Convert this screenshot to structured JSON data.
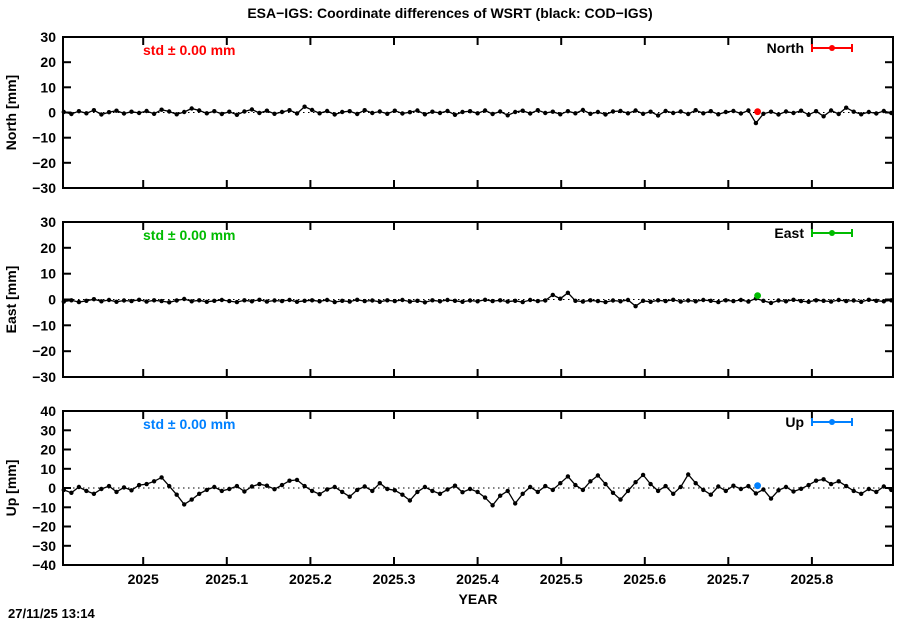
{
  "title": "ESA−IGS: Coordinate differences of WSRT (black: COD−IGS)",
  "timestamp": "27/11/25 13:14",
  "colors": {
    "north": "#ff0000",
    "east": "#00bb00",
    "up": "#0080ff",
    "data": "#000000"
  },
  "chart_data": {
    "type": "line",
    "title": "ESA−IGS: Coordinate differences of WSRT (black: COD−IGS)",
    "xlabel": "YEAR",
    "xlim": [
      2024.904,
      2025.897
    ],
    "x_ticks": [
      2025.0,
      2025.1,
      2025.2,
      2025.3,
      2025.4,
      2025.5,
      2025.6,
      2025.7,
      2025.8
    ],
    "x_tick_labels": [
      "2025",
      "2025.1",
      "2025.2",
      "2025.3",
      "2025.4",
      "2025.5",
      "2025.6",
      "2025.7",
      "2025.8"
    ],
    "x_start": 2024.905,
    "x_step": 0.009,
    "grid": false,
    "legend_position": "top-right-inside",
    "panels": [
      {
        "name": "North",
        "ylabel": "North [mm]",
        "ylim": [
          -30,
          30
        ],
        "yticks": [
          30,
          20,
          10,
          0,
          -10,
          -20,
          -30
        ],
        "ytick_labels": [
          "30",
          "20",
          "10",
          "0",
          "−10",
          "−20",
          "−30"
        ],
        "std_label": "std ± 0.00 mm",
        "legend": "North",
        "color": "#ff0000",
        "highlight": {
          "x": 2025.735,
          "y": 0.3
        },
        "values": [
          0.2,
          -0.6,
          0.5,
          -0.3,
          0.9,
          -0.8,
          0.1,
          0.7,
          -0.4,
          0.3,
          -0.2,
          0.6,
          -0.5,
          1.1,
          0.4,
          -0.7,
          0.2,
          1.6,
          0.8,
          -0.3,
          0.5,
          -0.6,
          0.3,
          -0.9,
          0.4,
          1.2,
          -0.2,
          0.7,
          -0.5,
          0.2,
          0.9,
          -0.4,
          2.3,
          1.0,
          -0.3,
          0.6,
          -0.8,
          0.2,
          0.5,
          -0.6,
          0.9,
          -0.2,
          0.4,
          -0.5,
          0.7,
          -0.4,
          0.1,
          0.8,
          -0.7,
          0.3,
          -0.2,
          0.6,
          -0.9,
          0.2,
          0.5,
          -0.3,
          0.8,
          -0.6,
          0.4,
          -1.1,
          0.2,
          0.7,
          -0.4,
          0.9,
          -0.2,
          0.3,
          -0.7,
          0.5,
          -0.3,
          1.0,
          -0.5,
          0.2,
          -0.8,
          0.4,
          0.6,
          -0.3,
          0.8,
          -0.5,
          0.3,
          -1.2,
          0.6,
          -0.2,
          0.4,
          -0.6,
          0.9,
          -0.3,
          0.5,
          -0.7,
          0.2,
          0.6,
          -0.4,
          0.8,
          -4.2,
          -0.5,
          0.3,
          -0.8,
          0.4,
          -0.2,
          0.7,
          -0.9,
          0.5,
          -1.5,
          0.8,
          -0.6,
          1.9,
          0.3,
          -0.7,
          0.2,
          -0.4,
          0.6,
          -0.2
        ]
      },
      {
        "name": "East",
        "ylabel": "East [mm]",
        "ylim": [
          -30,
          30
        ],
        "yticks": [
          30,
          20,
          10,
          0,
          -10,
          -20,
          -30
        ],
        "ytick_labels": [
          "30",
          "20",
          "10",
          "0",
          "−10",
          "−20",
          "−30"
        ],
        "std_label": "std ± 0.00 mm",
        "legend": "East",
        "color": "#00bb00",
        "highlight": {
          "x": 2025.735,
          "y": 1.5
        },
        "values": [
          -0.8,
          -0.3,
          -1.0,
          -0.5,
          0.1,
          -0.7,
          -0.2,
          -0.9,
          -0.4,
          -0.6,
          -0.1,
          -0.8,
          -0.3,
          -0.6,
          -1.1,
          -0.4,
          0.2,
          -0.7,
          -0.3,
          -0.9,
          -0.5,
          -0.2,
          -0.6,
          -1.0,
          -0.3,
          -0.7,
          -0.1,
          -0.8,
          -0.4,
          -0.6,
          -0.2,
          -0.9,
          -0.5,
          -0.3,
          -0.7,
          -0.2,
          -1.0,
          -0.5,
          -0.8,
          -0.1,
          -0.6,
          -0.4,
          -0.9,
          -0.3,
          -0.6,
          -0.2,
          -0.8,
          -0.5,
          -1.1,
          -0.3,
          -0.7,
          -0.2,
          -0.5,
          -0.9,
          -0.4,
          -0.7,
          -0.1,
          -0.6,
          -0.3,
          -0.8,
          -0.5,
          -1.0,
          -0.2,
          -0.6,
          -0.4,
          1.8,
          0.3,
          2.6,
          -0.5,
          -0.8,
          -0.3,
          -0.6,
          -1.0,
          -0.4,
          -0.7,
          -0.2,
          -2.6,
          -0.5,
          -0.9,
          -0.3,
          -0.6,
          -0.1,
          -0.8,
          -0.4,
          -0.7,
          -0.2,
          -0.5,
          -1.0,
          -0.3,
          -0.6,
          -0.2,
          -0.8,
          0.4,
          -0.5,
          -1.3,
          -0.4,
          -0.7,
          -0.1,
          -0.6,
          -0.9,
          -0.3,
          -0.5,
          -0.8,
          -0.2,
          -0.6,
          -0.4,
          -0.9,
          -0.1,
          -0.5,
          -0.7,
          -0.3
        ]
      },
      {
        "name": "Up",
        "ylabel": "Up [mm]",
        "ylim": [
          -40,
          40
        ],
        "yticks": [
          40,
          30,
          20,
          10,
          0,
          -10,
          -20,
          -30,
          -40
        ],
        "ytick_labels": [
          "40",
          "30",
          "20",
          "10",
          "0",
          "−10",
          "−20",
          "−30",
          "−40"
        ],
        "std_label": "std ± 0.00 mm",
        "legend": "Up",
        "color": "#0080ff",
        "highlight": {
          "x": 2025.735,
          "y": 1.2
        },
        "values": [
          -1.0,
          -2.5,
          0.5,
          -1.5,
          -3.0,
          -0.5,
          1.0,
          -2.0,
          0.3,
          -1.2,
          1.5,
          2.0,
          3.5,
          5.5,
          1.0,
          -3.5,
          -8.5,
          -6.0,
          -3.0,
          -1.0,
          0.5,
          -1.5,
          -0.5,
          1.0,
          -1.8,
          0.8,
          2.0,
          1.2,
          -0.6,
          1.5,
          3.8,
          4.2,
          1.0,
          -1.5,
          -3.2,
          -0.8,
          0.5,
          -2.0,
          -4.5,
          -1.0,
          0.8,
          -1.5,
          2.5,
          -0.5,
          -1.2,
          -3.5,
          -6.5,
          -2.0,
          0.5,
          -1.5,
          -3.0,
          -0.8,
          1.2,
          -2.2,
          -0.5,
          -2.0,
          -5.0,
          -9.0,
          -4.0,
          -1.5,
          -8.0,
          -3.0,
          0.5,
          -2.0,
          1.0,
          -1.0,
          2.5,
          6.0,
          1.5,
          -1.0,
          3.5,
          6.5,
          2.0,
          -2.5,
          -6.0,
          -1.5,
          3.0,
          6.8,
          2.0,
          -1.5,
          1.0,
          -3.0,
          0.5,
          7.0,
          2.5,
          -1.0,
          -3.5,
          0.8,
          -1.5,
          1.2,
          -0.5,
          1.0,
          -2.8,
          -0.8,
          -5.5,
          -1.2,
          0.5,
          -1.8,
          -0.4,
          1.5,
          3.8,
          4.5,
          2.0,
          3.5,
          1.0,
          -1.5,
          -3.0,
          -0.5,
          -2.0,
          0.8,
          -1.0
        ]
      }
    ]
  }
}
